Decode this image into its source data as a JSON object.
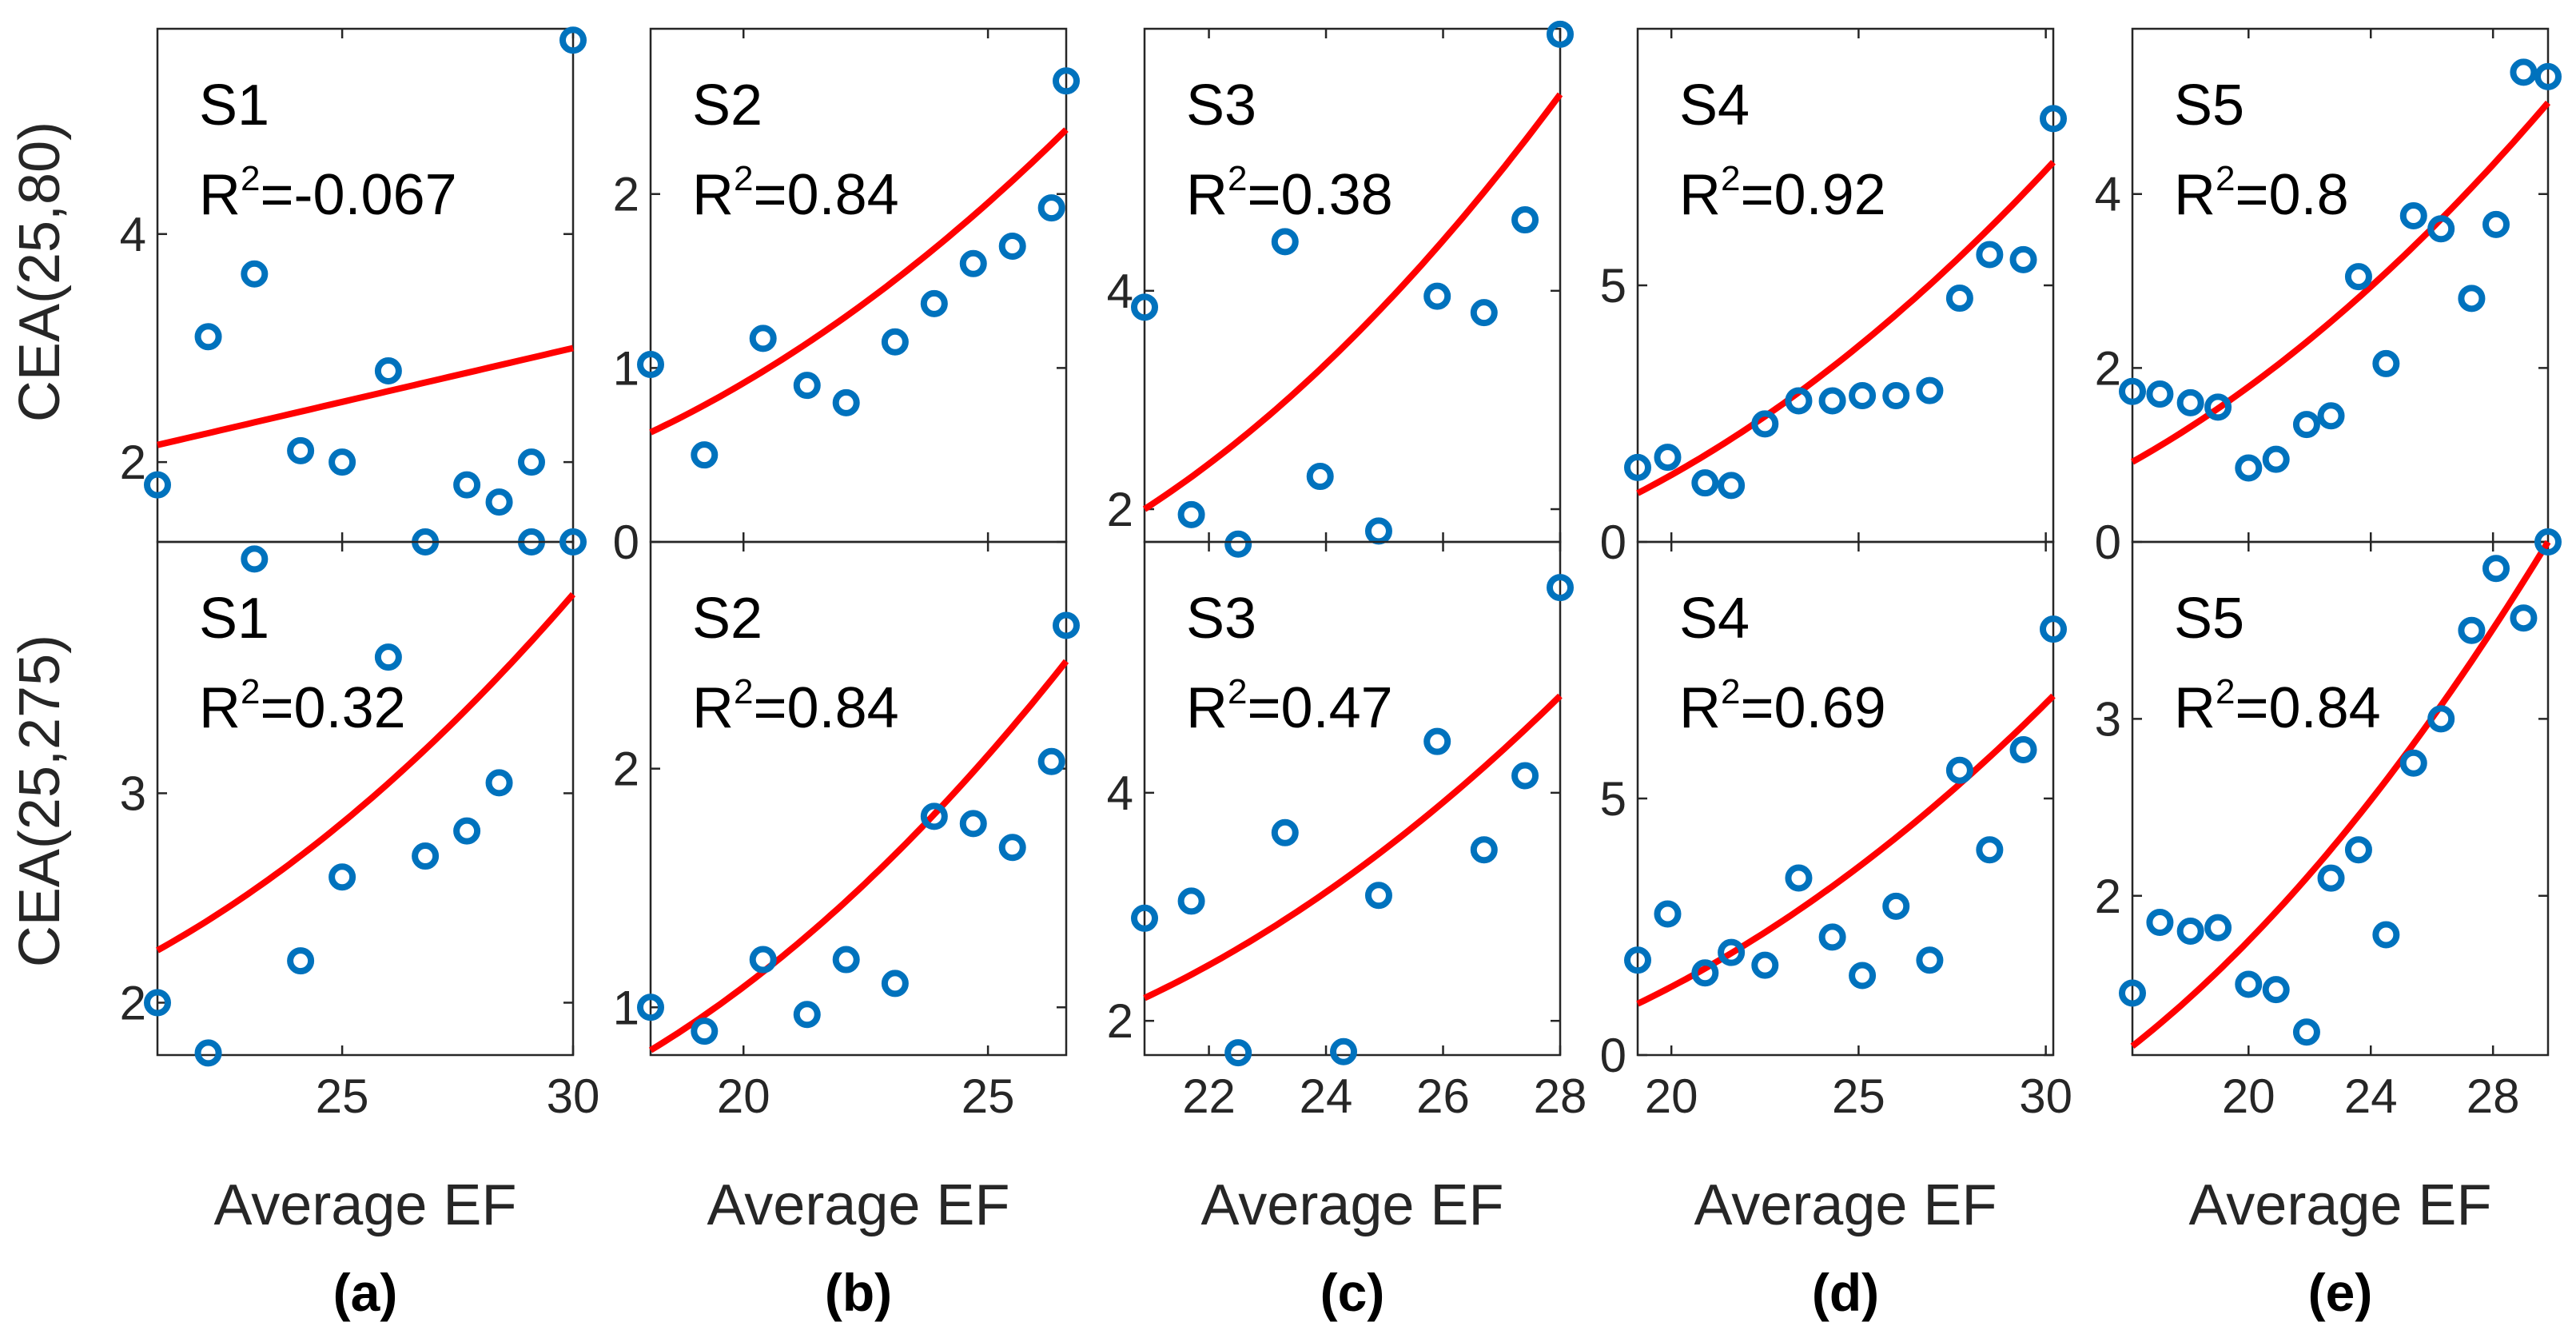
{
  "figure": {
    "ylabel_top": "CEA(25,80)",
    "ylabel_bottom": "CEA(25,275)",
    "xlabel": "Average EF"
  },
  "colors": {
    "marker": "#0072BD",
    "fit": "#FF0000",
    "axis": "#262626"
  },
  "chart_data": [
    {
      "type": "scatter",
      "subplot": "(a)",
      "xlim": [
        21,
        30
      ],
      "xticks": [
        25,
        30
      ],
      "top": {
        "label": "S1",
        "r2": "=-0.067",
        "ylim": [
          1.3,
          5.8
        ],
        "yticks": [
          2,
          4
        ],
        "x": [
          21.0,
          22.1,
          23.1,
          23.1,
          24.1,
          25.0,
          26.0,
          26.8,
          27.7,
          28.4,
          29.1,
          29.1,
          30.0
        ],
        "y": [
          1.8,
          3.1,
          3.65,
          1.15,
          2.1,
          2.0,
          2.8,
          1.3,
          1.8,
          1.65,
          2.0,
          1.3,
          5.7
        ],
        "fit_x": [
          21,
          30
        ],
        "fit_y": [
          2.15,
          3.0
        ]
      },
      "bottom": {
        "label": "S1",
        "r2": "=0.32",
        "ylim": [
          1.75,
          4.2
        ],
        "yticks": [
          2,
          3
        ],
        "x": [
          21.0,
          22.1,
          24.1,
          25.0,
          26.0,
          26.8,
          27.7,
          28.4,
          30.0
        ],
        "y": [
          2.0,
          1.76,
          2.2,
          2.6,
          3.65,
          2.7,
          2.82,
          3.05,
          4.2
        ],
        "fit_x": [
          21,
          30
        ],
        "fit_y": [
          2.25,
          3.95
        ],
        "fit_curvature": 0.35
      }
    },
    {
      "type": "scatter",
      "subplot": "(b)",
      "xlim": [
        18.1,
        26.6
      ],
      "xticks": [
        20,
        25
      ],
      "top": {
        "label": "S2",
        "r2": "=0.84",
        "ylim": [
          0,
          2.95
        ],
        "yticks": [
          0,
          1,
          2
        ],
        "x": [
          18.1,
          19.2,
          20.4,
          21.3,
          22.1,
          23.1,
          23.9,
          24.7,
          25.5,
          26.3,
          26.6
        ],
        "y": [
          1.02,
          0.5,
          1.17,
          0.9,
          0.8,
          1.15,
          1.37,
          1.6,
          1.7,
          1.92,
          2.65
        ],
        "fit_x": [
          18.1,
          26.6
        ],
        "fit_y": [
          0.63,
          2.37
        ],
        "fit_curvature": 0.35
      },
      "bottom": {
        "label": "S2",
        "r2": "=0.84",
        "ylim": [
          0.8,
          2.95
        ],
        "yticks": [
          1,
          2
        ],
        "x": [
          18.1,
          19.2,
          20.4,
          21.3,
          22.1,
          23.1,
          23.9,
          24.7,
          25.5,
          26.3,
          26.6
        ],
        "y": [
          1.0,
          0.9,
          1.2,
          0.97,
          1.2,
          1.1,
          1.8,
          1.77,
          1.67,
          2.03,
          2.6
        ],
        "fit_x": [
          18.1,
          26.6
        ],
        "fit_y": [
          0.82,
          2.45
        ],
        "fit_curvature": 0.35
      }
    },
    {
      "type": "scatter",
      "subplot": "(c)",
      "xlim": [
        20.9,
        28.0
      ],
      "xticks": [
        22,
        24,
        26,
        28
      ],
      "top": {
        "label": "S3",
        "r2": "=0.38",
        "ylim": [
          1.7,
          6.4
        ],
        "yticks": [
          2,
          4
        ],
        "x": [
          20.9,
          21.7,
          22.5,
          23.3,
          23.9,
          24.9,
          25.9,
          26.7,
          27.4,
          28.0
        ],
        "y": [
          3.85,
          1.95,
          1.68,
          4.45,
          2.3,
          1.8,
          3.95,
          3.8,
          4.65,
          6.35
        ],
        "fit_x": [
          20.9,
          28.0
        ],
        "fit_y": [
          2.0,
          5.8
        ],
        "fit_curvature": 0.35
      },
      "bottom": {
        "label": "S3",
        "r2": "=0.47",
        "ylim": [
          1.7,
          6.2
        ],
        "yticks": [
          2,
          4
        ],
        "x": [
          20.9,
          21.7,
          22.5,
          23.3,
          24.3,
          24.9,
          25.9,
          26.7,
          27.4,
          28.0
        ],
        "y": [
          2.9,
          3.05,
          1.72,
          3.65,
          1.73,
          3.1,
          4.45,
          3.5,
          4.15,
          5.8
        ],
        "fit_x": [
          20.9,
          28.0
        ],
        "fit_y": [
          2.2,
          4.85
        ],
        "fit_curvature": 0.35
      }
    },
    {
      "type": "scatter",
      "subplot": "(d)",
      "xlim": [
        19.1,
        30.2
      ],
      "xticks": [
        20,
        25,
        30
      ],
      "top": {
        "label": "S4",
        "r2": "=0.92",
        "ylim": [
          0,
          10.0
        ],
        "yticks": [
          0,
          5
        ],
        "x": [
          19.1,
          19.9,
          20.9,
          21.6,
          22.5,
          23.4,
          24.3,
          25.1,
          26.0,
          26.9,
          27.7,
          28.5,
          29.4,
          30.2
        ],
        "y": [
          1.45,
          1.65,
          1.15,
          1.1,
          2.3,
          2.75,
          2.75,
          2.85,
          2.85,
          2.95,
          4.75,
          5.6,
          5.5,
          8.25
        ],
        "fit_x": [
          19.1,
          30.2
        ],
        "fit_y": [
          0.95,
          7.4
        ],
        "fit_curvature": 0.35
      },
      "bottom": {
        "label": "S4",
        "r2": "=0.69",
        "ylim": [
          0,
          10.0
        ],
        "yticks": [
          0,
          5
        ],
        "x": [
          19.1,
          19.9,
          20.9,
          21.6,
          22.5,
          23.4,
          24.3,
          25.1,
          26.0,
          26.9,
          27.7,
          28.5,
          29.4,
          30.2
        ],
        "y": [
          1.85,
          2.75,
          1.6,
          2.0,
          1.75,
          3.45,
          2.3,
          1.55,
          2.9,
          1.85,
          5.55,
          4.0,
          5.95,
          8.3
        ],
        "fit_x": [
          19.1,
          30.2
        ],
        "fit_y": [
          1.0,
          7.0
        ],
        "fit_curvature": 0.35
      }
    },
    {
      "type": "scatter",
      "subplot": "(e)",
      "xlim": [
        16.2,
        29.8
      ],
      "xticks": [
        20,
        24,
        28
      ],
      "top": {
        "label": "S5",
        "r2": "=0.8",
        "ylim": [
          0,
          5.9
        ],
        "yticks": [
          0,
          2,
          4
        ],
        "x": [
          16.2,
          17.1,
          18.1,
          19.0,
          20.0,
          20.9,
          21.9,
          22.7,
          23.6,
          24.5,
          25.4,
          26.3,
          27.3,
          28.1,
          29.0,
          29.8
        ],
        "y": [
          1.73,
          1.7,
          1.6,
          1.55,
          0.85,
          0.95,
          1.35,
          1.45,
          3.05,
          2.05,
          3.75,
          3.6,
          2.8,
          3.65,
          5.4,
          5.35
        ],
        "fit_x": [
          16.2,
          29.8
        ],
        "fit_y": [
          0.92,
          5.05
        ],
        "fit_curvature": 0.35
      },
      "bottom": {
        "label": "S5",
        "r2": "=0.84",
        "ylim": [
          1.1,
          4.0
        ],
        "yticks": [
          2,
          3
        ],
        "x": [
          16.2,
          17.1,
          18.1,
          19.0,
          20.0,
          20.9,
          21.9,
          22.7,
          23.6,
          24.5,
          25.4,
          26.3,
          27.3,
          28.1,
          29.0,
          29.8
        ],
        "y": [
          1.45,
          1.85,
          1.8,
          1.82,
          1.5,
          1.47,
          1.23,
          2.1,
          2.26,
          1.78,
          2.75,
          3.0,
          3.5,
          3.85,
          3.57,
          4.0
        ],
        "fit_x": [
          16.2,
          29.8
        ],
        "fit_y": [
          1.15,
          4.0
        ],
        "fit_curvature": 0.35
      }
    }
  ]
}
